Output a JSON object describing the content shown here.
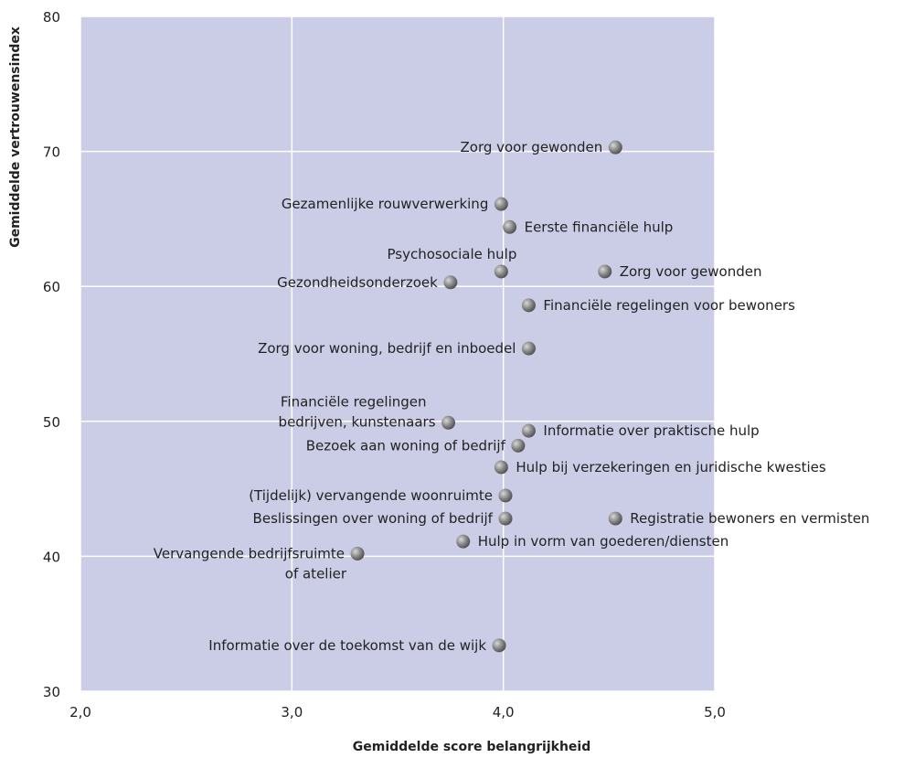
{
  "chart_data": {
    "type": "scatter",
    "title": "",
    "xlabel": "Gemiddelde score belangrijkheid",
    "ylabel": "Gemiddelde vertrouwensindex",
    "xlim": [
      2.0,
      5.0
    ],
    "ylim": [
      30,
      80
    ],
    "xticks": [
      "2,0",
      "3,0",
      "4,0",
      "5,0"
    ],
    "yticks": [
      "30",
      "40",
      "50",
      "60",
      "70",
      "80"
    ],
    "xtick_values": [
      2.0,
      3.0,
      4.0,
      5.0
    ],
    "ytick_values": [
      30,
      40,
      50,
      60,
      70,
      80
    ],
    "grid": true,
    "colors": {
      "plot_bg": "#cbcde6",
      "grid": "#ffffff",
      "marker": "#8a8a8a"
    },
    "points": [
      {
        "x": 4.53,
        "y": 70.3,
        "label": [
          "Zorg voor gewonden"
        ],
        "side": "left"
      },
      {
        "x": 3.99,
        "y": 66.1,
        "label": [
          "Gezamenlijke rouwverwerking"
        ],
        "side": "left"
      },
      {
        "x": 4.03,
        "y": 64.4,
        "label": [
          "Eerste financiële hulp"
        ],
        "side": "right"
      },
      {
        "x": 3.99,
        "y": 61.1,
        "label": [
          "Psychosociale hulp"
        ],
        "side": "above-left"
      },
      {
        "x": 4.48,
        "y": 61.1,
        "label": [
          "Zorg voor gewonden"
        ],
        "side": "right"
      },
      {
        "x": 3.75,
        "y": 60.3,
        "label": [
          "Gezondheidsonderzoek"
        ],
        "side": "left"
      },
      {
        "x": 4.12,
        "y": 58.6,
        "label": [
          "Financiële regelingen voor bewoners"
        ],
        "side": "right"
      },
      {
        "x": 4.12,
        "y": 55.4,
        "label": [
          "Zorg voor woning, bedrijf en inboedel"
        ],
        "side": "left"
      },
      {
        "x": 3.74,
        "y": 49.9,
        "label": [
          "Financiële regelingen",
          "bedrijven, kunstenaars"
        ],
        "side": "left-two"
      },
      {
        "x": 4.12,
        "y": 49.3,
        "label": [
          "Informatie over praktische hulp"
        ],
        "side": "right"
      },
      {
        "x": 4.07,
        "y": 48.2,
        "label": [
          "Bezoek aan woning of bedrijf"
        ],
        "side": "left"
      },
      {
        "x": 3.99,
        "y": 46.6,
        "label": [
          "Hulp bij verzekeringen en juridische kwesties"
        ],
        "side": "right"
      },
      {
        "x": 4.01,
        "y": 44.5,
        "label": [
          "(Tijdelijk) vervangende woonruimte"
        ],
        "side": "left"
      },
      {
        "x": 4.01,
        "y": 42.8,
        "label": [
          "Beslissingen over woning of bedrijf"
        ],
        "side": "left"
      },
      {
        "x": 4.53,
        "y": 42.8,
        "label": [
          "Registratie bewoners en vermisten"
        ],
        "side": "right"
      },
      {
        "x": 3.81,
        "y": 41.1,
        "label": [
          "Hulp in vorm van goederen/diensten"
        ],
        "side": "right"
      },
      {
        "x": 3.31,
        "y": 40.2,
        "label": [
          "Vervangende bedrijfsruimte",
          "of atelier"
        ],
        "side": "left-two-below"
      },
      {
        "x": 3.98,
        "y": 33.4,
        "label": [
          "Informatie over de toekomst van de wijk"
        ],
        "side": "left"
      }
    ]
  }
}
